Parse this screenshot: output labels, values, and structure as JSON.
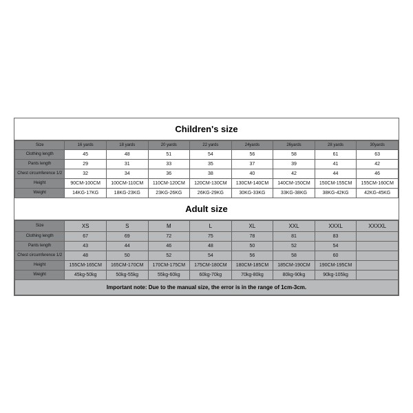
{
  "children": {
    "title": "Children's size",
    "columns": [
      "Size",
      "16 yards",
      "18 yards",
      "20 yards",
      "22 yards",
      "24yards",
      "26yards",
      "28 yards",
      "30yards"
    ],
    "rows": [
      {
        "label": "Clothing length",
        "vals": [
          "45",
          "48",
          "51",
          "54",
          "56",
          "58",
          "61",
          "63"
        ]
      },
      {
        "label": "Pants length",
        "vals": [
          "29",
          "31",
          "33",
          "35",
          "37",
          "39",
          "41",
          "42"
        ]
      },
      {
        "label": "Chest circumference 1/2",
        "vals": [
          "32",
          "34",
          "36",
          "38",
          "40",
          "42",
          "44",
          "46"
        ]
      },
      {
        "label": "Height",
        "vals": [
          "90CM-100CM",
          "100CM-110CM",
          "110CM-120CM",
          "120CM-130CM",
          "130CM-140CM",
          "140CM-150CM",
          "150CM-155CM",
          "155CM-160CM"
        ]
      },
      {
        "label": "Weight",
        "vals": [
          "14KG-17KG",
          "18KG-23KG",
          "23KG-26KG",
          "26KG-29KG",
          "30KG-33KG",
          "33KG-38KG",
          "38KG-42KG",
          "42KG-45KG"
        ]
      }
    ]
  },
  "adult": {
    "title": "Adult size",
    "columns": [
      "Size",
      "XS",
      "S",
      "M",
      "L",
      "XL",
      "XXL",
      "XXXL",
      "XXXXL"
    ],
    "rows": [
      {
        "label": "Clothing length",
        "vals": [
          "67",
          "69",
          "72",
          "75",
          "78",
          "81",
          "83",
          ""
        ]
      },
      {
        "label": "Pants length",
        "vals": [
          "43",
          "44",
          "46",
          "48",
          "50",
          "52",
          "54",
          ""
        ]
      },
      {
        "label": "Chest circumference 1/2",
        "vals": [
          "48",
          "50",
          "52",
          "54",
          "56",
          "58",
          "60",
          ""
        ]
      },
      {
        "label": "Height",
        "vals": [
          "155CM-165CM",
          "165CM-170CM",
          "170CM-175CM",
          "175CM-180CM",
          "180CM-185CM",
          "185CM-190CM",
          "190CM-195CM",
          ""
        ]
      },
      {
        "label": "Weight",
        "vals": [
          "45kg-50kg",
          "50kg-55kg",
          "55kg-60kg",
          "60kg-70kg",
          "70kg-80kg",
          "80kg-90kg",
          "90kg-105kg",
          ""
        ]
      }
    ]
  },
  "note": "Important note: Due to the manual size, the error is in the range of 1cm-3cm."
}
